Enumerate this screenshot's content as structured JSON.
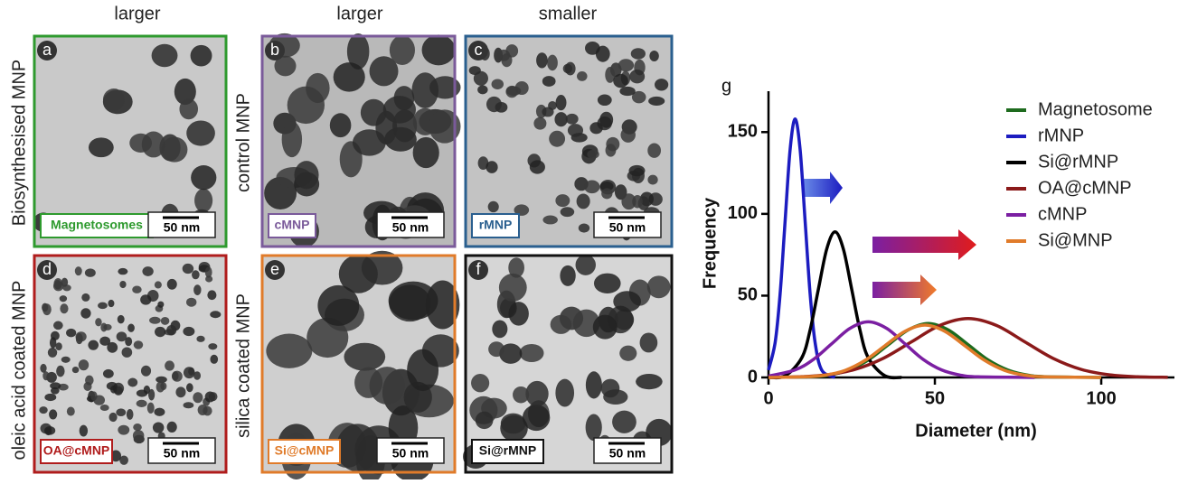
{
  "column_labels": [
    "larger",
    "larger",
    "smaller"
  ],
  "row_labels": [
    "Biosynthesised MNP",
    "control MNP",
    "oleic acid coated MNP",
    "silica coated MNP"
  ],
  "panels": [
    {
      "letter": "a",
      "label": "Magnetosomes",
      "scale": "50 nm",
      "color": "#2e9a2e"
    },
    {
      "letter": "b",
      "label": "cMNP",
      "scale": "50 nm",
      "color": "#7a5a9a"
    },
    {
      "letter": "c",
      "label": "rMNP",
      "scale": "50 nm",
      "color": "#2a5f8f"
    },
    {
      "letter": "d",
      "label": "OA@cMNP",
      "scale": "50 nm",
      "color": "#b01c1c"
    },
    {
      "letter": "e",
      "label": "Si@cMNP",
      "scale": "50 nm",
      "color": "#e07b2a"
    },
    {
      "letter": "f",
      "label": "Si@rMNP",
      "scale": "50 nm",
      "color": "#111111"
    }
  ],
  "chart_data": {
    "type": "line",
    "panel_label": "g",
    "x_label": "Diameter (nm)",
    "y_label": "Frequency",
    "xlim": [
      0,
      122
    ],
    "xticks": [
      0,
      50,
      100
    ],
    "ylim": [
      0,
      175
    ],
    "yticks": [
      0,
      50,
      100,
      150
    ],
    "series": [
      {
        "name": "Magnetosome",
        "color": "#1e6b1e",
        "x": [
          0,
          12,
          18,
          24,
          30,
          36,
          42,
          48,
          54,
          60,
          66,
          72,
          78,
          84,
          100
        ],
        "values": [
          0,
          0.4,
          1.4,
          4.5,
          10.7,
          20.0,
          29.1,
          33,
          29.1,
          20.0,
          10.7,
          4.5,
          1.4,
          0.4,
          0
        ]
      },
      {
        "name": "rMNP",
        "color": "#1c1cc0",
        "x": [
          0,
          2,
          3.5,
          5,
          6.5,
          8,
          9.5,
          11,
          12.5,
          14,
          16,
          20
        ],
        "values": [
          4.5,
          21.4,
          51.3,
          95.8,
          139.4,
          158,
          139.4,
          95.8,
          51.3,
          21.4,
          4.5,
          0
        ]
      },
      {
        "name": "Si@rMNP",
        "color": "#000000",
        "x": [
          0,
          5,
          10,
          12.5,
          15,
          17.5,
          20,
          22.5,
          25,
          27.5,
          30,
          35,
          40
        ],
        "values": [
          0,
          1.0,
          12.0,
          28.9,
          54.0,
          78.5,
          89,
          78.5,
          54.0,
          28.9,
          12.0,
          1.0,
          0
        ]
      },
      {
        "name": "OA@cMNP",
        "color": "#8b1a1a",
        "x": [
          0,
          9,
          17.5,
          26,
          34.5,
          43,
          51.5,
          60,
          68.5,
          77,
          85.5,
          94,
          102.5,
          111,
          120
        ],
        "values": [
          0,
          0.4,
          1.6,
          4.9,
          11.7,
          21.8,
          31.8,
          36,
          31.8,
          21.8,
          11.7,
          4.9,
          1.6,
          0.4,
          0.1
        ]
      },
      {
        "name": "cMNP",
        "color": "#7b1fa2",
        "x": [
          0,
          8,
          13.5,
          19,
          24.5,
          30,
          35.5,
          41,
          46.5,
          52,
          57.5,
          63,
          80
        ],
        "values": [
          0.8,
          4.6,
          11.0,
          20.6,
          30.0,
          34,
          30.0,
          20.6,
          11.0,
          4.6,
          1.5,
          0.4,
          0
        ]
      },
      {
        "name": "Si@MNP",
        "color": "#e07b2a",
        "x": [
          0,
          11,
          17,
          23,
          29,
          35,
          41,
          47,
          53,
          59,
          65,
          71,
          77,
          83,
          100
        ],
        "values": [
          0,
          0.4,
          1.4,
          4.3,
          10.4,
          19.4,
          28.2,
          32,
          28.2,
          19.4,
          10.4,
          4.3,
          1.4,
          0.4,
          0
        ]
      }
    ]
  }
}
